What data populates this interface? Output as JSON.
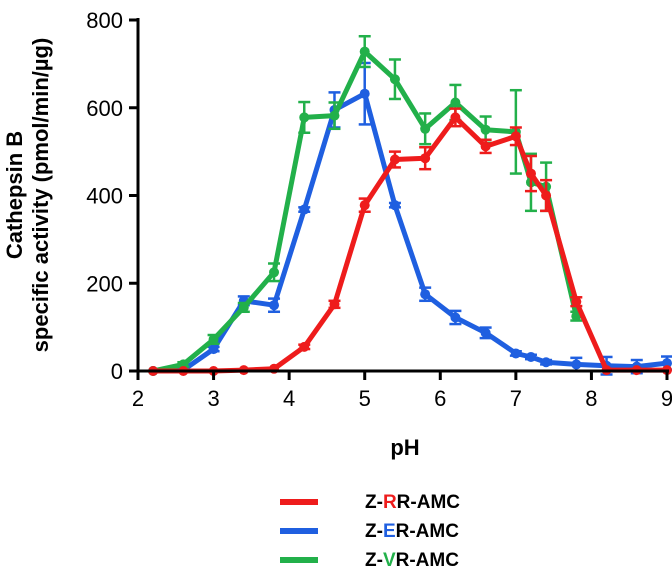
{
  "chart_data": {
    "type": "line",
    "title": "",
    "xlabel": "pH",
    "ylabel_line1": "Cathepsin B",
    "ylabel_line2": "specific activity (pmol/min/µg)",
    "xlim": [
      2,
      9
    ],
    "ylim": [
      0,
      800
    ],
    "xticks": [
      2,
      3,
      4,
      5,
      6,
      7,
      8,
      9
    ],
    "yticks": [
      0,
      200,
      400,
      600,
      800
    ],
    "legend_position": "bottom-center",
    "series": [
      {
        "name": "Z-RR-AMC",
        "label_parts": [
          "Z-",
          "R",
          "R-AMC"
        ],
        "color": "#ee1c1c",
        "x": [
          2.2,
          2.6,
          3.0,
          3.4,
          3.8,
          4.2,
          4.6,
          5.0,
          5.4,
          5.8,
          6.2,
          6.6,
          7.0,
          7.2,
          7.4,
          7.8,
          8.2,
          8.6,
          9.0
        ],
        "y": [
          0,
          0,
          0,
          2,
          5,
          55,
          152,
          378,
          482,
          485,
          578,
          512,
          535,
          450,
          400,
          158,
          2,
          2,
          2
        ],
        "err": [
          0,
          0,
          0,
          0,
          0,
          5,
          8,
          15,
          18,
          25,
          20,
          15,
          20,
          40,
          35,
          10,
          0,
          0,
          0
        ]
      },
      {
        "name": "Z-ER-AMC",
        "label_parts": [
          "Z-",
          "E",
          "R-AMC"
        ],
        "color": "#1f5fe0",
        "x": [
          2.2,
          2.6,
          3.0,
          3.4,
          3.8,
          4.2,
          4.6,
          5.0,
          5.4,
          5.8,
          6.2,
          6.6,
          7.0,
          7.2,
          7.4,
          7.8,
          8.2,
          8.6,
          9.0
        ],
        "y": [
          0,
          2,
          50,
          160,
          150,
          368,
          595,
          632,
          378,
          175,
          122,
          87,
          40,
          32,
          20,
          15,
          12,
          10,
          18
        ],
        "err": [
          0,
          0,
          5,
          10,
          15,
          5,
          40,
          70,
          5,
          15,
          15,
          12,
          5,
          5,
          5,
          15,
          20,
          15,
          15
        ]
      },
      {
        "name": "Z-VR-AMC",
        "label_parts": [
          "Z-",
          "V",
          "R-AMC"
        ],
        "color": "#22b04a",
        "x": [
          2.2,
          2.6,
          3.0,
          3.4,
          3.8,
          4.2,
          4.6,
          5.0,
          5.4,
          5.8,
          6.2,
          6.6,
          7.0,
          7.2,
          7.4,
          7.8
        ],
        "y": [
          0,
          15,
          72,
          145,
          225,
          578,
          582,
          728,
          665,
          552,
          612,
          550,
          545,
          430,
          420,
          125
        ],
        "err": [
          0,
          5,
          10,
          10,
          20,
          35,
          30,
          35,
          45,
          35,
          40,
          30,
          95,
          65,
          55,
          10
        ]
      }
    ]
  }
}
